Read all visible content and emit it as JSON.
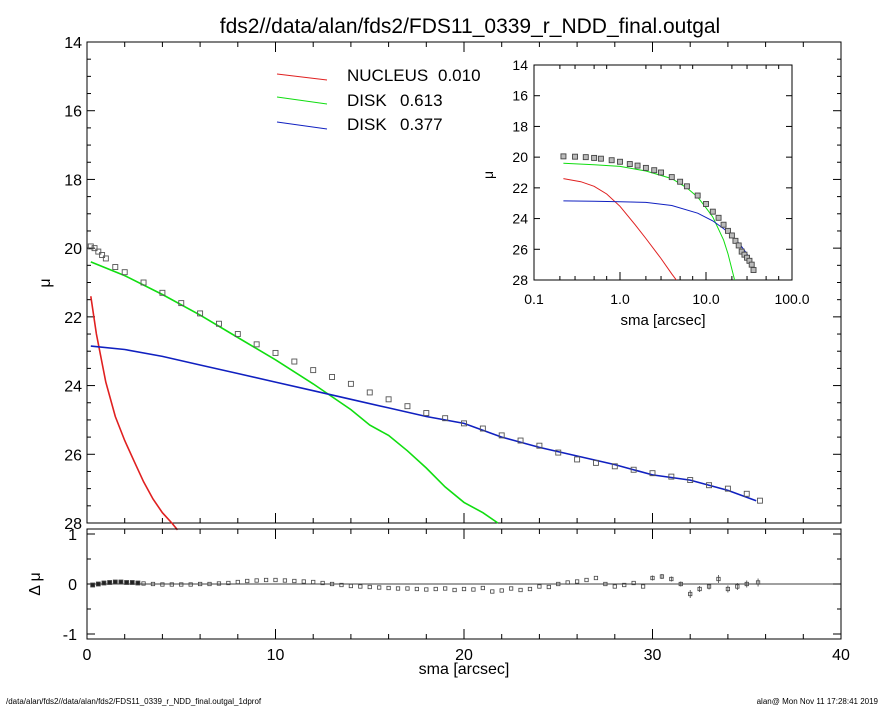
{
  "title": "fds2//data/alan/fds2/FDS11_0339_r_NDD_final.outgal",
  "footer": {
    "left": "/data/alan/fds2//data/alan/fds2/FDS11_0339_r_NDD_final.outgal_1dprof",
    "right": "alan@  Mon Nov 11 17:28:41 2019"
  },
  "colors": {
    "nucleus": "#e02020",
    "disk1": "#10dd10",
    "disk2": "#1020c0",
    "data": "#555555"
  },
  "chart_data": [
    {
      "type": "line",
      "panel": "main",
      "xlabel": "sma [arcsec]",
      "ylabel": "μ",
      "xlim": [
        0,
        40
      ],
      "ylim": [
        28,
        14
      ],
      "y_inverted": true,
      "xticks": [
        0,
        10,
        20,
        30,
        40
      ],
      "yticks": [
        14,
        16,
        18,
        20,
        22,
        24,
        26,
        28
      ],
      "legend": [
        {
          "label": "NUCLEUS",
          "value": "0.010",
          "color": "#e02020"
        },
        {
          "label": "DISK",
          "value": "0.613",
          "color": "#10dd10"
        },
        {
          "label": "DISK",
          "value": "0.377",
          "color": "#1020c0"
        }
      ],
      "series": [
        {
          "component": "nucleus",
          "color": "#e02020",
          "x": [
            0.2,
            0.5,
            1.0,
            1.5,
            2.0,
            2.5,
            3.0,
            3.5,
            4.0,
            4.5,
            4.8
          ],
          "y": [
            21.4,
            22.5,
            23.9,
            24.9,
            25.6,
            26.2,
            26.8,
            27.3,
            27.7,
            28.0,
            28.2
          ]
        },
        {
          "component": "disk1",
          "color": "#10dd10",
          "x": [
            0.2,
            2,
            4,
            6,
            8,
            10,
            12,
            14,
            15,
            16,
            17,
            18,
            19,
            20,
            21,
            21.8
          ],
          "y": [
            20.4,
            20.8,
            21.35,
            21.95,
            22.6,
            23.25,
            23.95,
            24.7,
            25.15,
            25.45,
            25.9,
            26.4,
            26.95,
            27.4,
            27.7,
            28.0
          ]
        },
        {
          "component": "disk2",
          "color": "#1020c0",
          "x": [
            0.2,
            2,
            4,
            6,
            8,
            10,
            12,
            14,
            16,
            18,
            20,
            22,
            24,
            26,
            28,
            30,
            32,
            34,
            35.5
          ],
          "y": [
            22.85,
            22.95,
            23.15,
            23.4,
            23.65,
            23.9,
            24.15,
            24.4,
            24.65,
            24.9,
            25.1,
            25.5,
            25.8,
            26.05,
            26.3,
            26.6,
            26.75,
            27.05,
            27.35
          ]
        }
      ],
      "observed": {
        "x": [
          0.2,
          0.4,
          0.6,
          0.8,
          1.0,
          1.5,
          2.0,
          3.0,
          4.0,
          5.0,
          6.0,
          7.0,
          8.0,
          9.0,
          10.0,
          11.0,
          12.0,
          13.0,
          14.0,
          15.0,
          16.0,
          17.0,
          18.0,
          19.0,
          20.0,
          21.0,
          22.0,
          23.0,
          24.0,
          25.0,
          26.0,
          27.0,
          28.0,
          29.0,
          30.0,
          31.0,
          32.0,
          33.0,
          34.0,
          35.0,
          35.7
        ],
        "y": [
          19.95,
          20.0,
          20.1,
          20.2,
          20.3,
          20.55,
          20.7,
          21.0,
          21.3,
          21.6,
          21.9,
          22.2,
          22.5,
          22.8,
          23.05,
          23.3,
          23.55,
          23.75,
          23.95,
          24.2,
          24.4,
          24.6,
          24.8,
          24.95,
          25.1,
          25.25,
          25.45,
          25.6,
          25.75,
          25.95,
          26.15,
          26.25,
          26.35,
          26.45,
          26.55,
          26.65,
          26.75,
          26.9,
          27.0,
          27.15,
          27.35
        ]
      }
    },
    {
      "type": "line",
      "panel": "inset",
      "xlabel": "sma [arcsec]",
      "ylabel": "μ",
      "x_scale": "log",
      "xlim": [
        0.1,
        100.0
      ],
      "ylim": [
        28,
        14
      ],
      "y_inverted": true,
      "xticks": [
        "0.1",
        "1.0",
        "10.0",
        "100.0"
      ],
      "yticks": [
        14,
        16,
        18,
        20,
        22,
        24,
        26,
        28
      ],
      "series": [
        {
          "component": "nucleus",
          "color": "#e02020",
          "x": [
            0.22,
            0.35,
            0.5,
            0.7,
            1.0,
            1.5,
            2.0,
            3.0,
            4.0,
            4.8
          ],
          "y": [
            21.4,
            21.6,
            21.9,
            22.4,
            23.2,
            24.4,
            25.3,
            26.6,
            27.6,
            28.2
          ]
        },
        {
          "component": "disk1",
          "color": "#10dd10",
          "x": [
            0.22,
            0.5,
            1.0,
            2.0,
            4.0,
            6.0,
            8.0,
            10.0,
            12.0,
            14.0,
            16.0,
            18.0,
            20.0,
            22.0
          ],
          "y": [
            20.4,
            20.5,
            20.6,
            20.9,
            21.4,
            22.0,
            22.6,
            23.3,
            23.9,
            24.7,
            25.4,
            26.3,
            27.3,
            28.2
          ]
        },
        {
          "component": "disk2",
          "color": "#1020c0",
          "x": [
            0.22,
            0.5,
            1.0,
            2.0,
            4.0,
            8.0,
            12.0,
            16.0,
            20.0,
            25.0,
            30.0,
            35.5
          ],
          "y": [
            22.85,
            22.87,
            22.9,
            22.95,
            23.15,
            23.65,
            24.15,
            24.65,
            25.1,
            25.7,
            26.3,
            27.2
          ]
        }
      ],
      "observed": {
        "x": [
          0.22,
          0.3,
          0.4,
          0.5,
          0.6,
          0.8,
          1.0,
          1.3,
          1.6,
          2.0,
          2.5,
          3.0,
          4.0,
          5.0,
          6.0,
          8.0,
          10.0,
          12.0,
          14.0,
          16.0,
          18.0,
          20.0,
          22.0,
          24.0,
          26.0,
          28.0,
          30.0,
          32.0,
          34.0,
          35.7
        ],
        "y": [
          19.95,
          19.97,
          20.0,
          20.05,
          20.1,
          20.2,
          20.3,
          20.45,
          20.55,
          20.7,
          20.85,
          21.0,
          21.3,
          21.6,
          21.9,
          22.5,
          23.05,
          23.55,
          23.95,
          24.4,
          24.8,
          25.1,
          25.45,
          25.75,
          26.15,
          26.35,
          26.55,
          26.75,
          27.0,
          27.35
        ]
      }
    },
    {
      "type": "scatter",
      "panel": "residual",
      "xlabel": "sma [arcsec]",
      "ylabel": "Δ μ",
      "xlim": [
        0,
        40
      ],
      "ylim": [
        -1.1,
        1.1
      ],
      "xticks": [
        0,
        10,
        20,
        30,
        40
      ],
      "yticks": [
        1,
        0,
        -1
      ],
      "zero_line": true,
      "x": [
        0.3,
        0.6,
        0.9,
        1.2,
        1.5,
        1.8,
        2.1,
        2.4,
        2.7,
        3.0,
        3.5,
        4.0,
        4.5,
        5.0,
        5.5,
        6.0,
        6.5,
        7.0,
        7.5,
        8.0,
        8.5,
        9.0,
        9.5,
        10.0,
        10.5,
        11.0,
        11.5,
        12.0,
        12.5,
        13.0,
        13.5,
        14.0,
        14.5,
        15.0,
        15.5,
        16.0,
        16.5,
        17.0,
        17.5,
        18.0,
        18.5,
        19.0,
        19.5,
        20.0,
        20.5,
        21.0,
        21.5,
        22.0,
        22.5,
        23.0,
        23.5,
        24.0,
        24.5,
        25.0,
        25.5,
        26.0,
        26.5,
        27.0,
        27.5,
        28.0,
        28.5,
        29.0,
        29.5,
        30.0,
        30.5,
        31.0,
        31.5,
        32.0,
        32.5,
        33.0,
        33.5,
        34.0,
        34.5,
        35.0,
        35.6
      ],
      "y": [
        -0.02,
        0.0,
        0.02,
        0.03,
        0.04,
        0.04,
        0.03,
        0.03,
        0.02,
        0.01,
        0.0,
        -0.01,
        -0.01,
        -0.01,
        -0.01,
        0.0,
        0.0,
        0.01,
        0.02,
        0.04,
        0.06,
        0.07,
        0.08,
        0.08,
        0.07,
        0.06,
        0.05,
        0.04,
        0.02,
        0.0,
        -0.02,
        -0.04,
        -0.05,
        -0.06,
        -0.07,
        -0.08,
        -0.09,
        -0.09,
        -0.1,
        -0.11,
        -0.1,
        -0.09,
        -0.12,
        -0.1,
        -0.11,
        -0.08,
        -0.15,
        -0.13,
        -0.09,
        -0.12,
        -0.1,
        -0.05,
        -0.06,
        0.0,
        0.03,
        0.05,
        0.08,
        0.12,
        0.0,
        -0.05,
        -0.02,
        0.02,
        -0.05,
        0.12,
        0.15,
        0.1,
        0.0,
        -0.2,
        -0.1,
        -0.05,
        0.1,
        -0.1,
        -0.05,
        0.0,
        0.03
      ],
      "err": [
        0,
        0,
        0,
        0,
        0,
        0,
        0,
        0,
        0,
        0,
        0,
        0,
        0,
        0,
        0,
        0,
        0,
        0,
        0,
        0,
        0,
        0,
        0,
        0,
        0,
        0,
        0,
        0,
        0,
        0,
        0,
        0,
        0,
        0,
        0,
        0,
        0,
        0,
        0,
        0,
        0,
        0,
        0,
        0,
        0,
        0,
        0,
        0,
        0,
        0,
        0,
        0,
        0,
        0,
        0,
        0,
        0,
        0,
        0,
        0,
        0,
        0,
        0,
        0.05,
        0.05,
        0.05,
        0.05,
        0.08,
        0.06,
        0.06,
        0.08,
        0.07,
        0.07,
        0.07,
        0.08
      ]
    }
  ]
}
